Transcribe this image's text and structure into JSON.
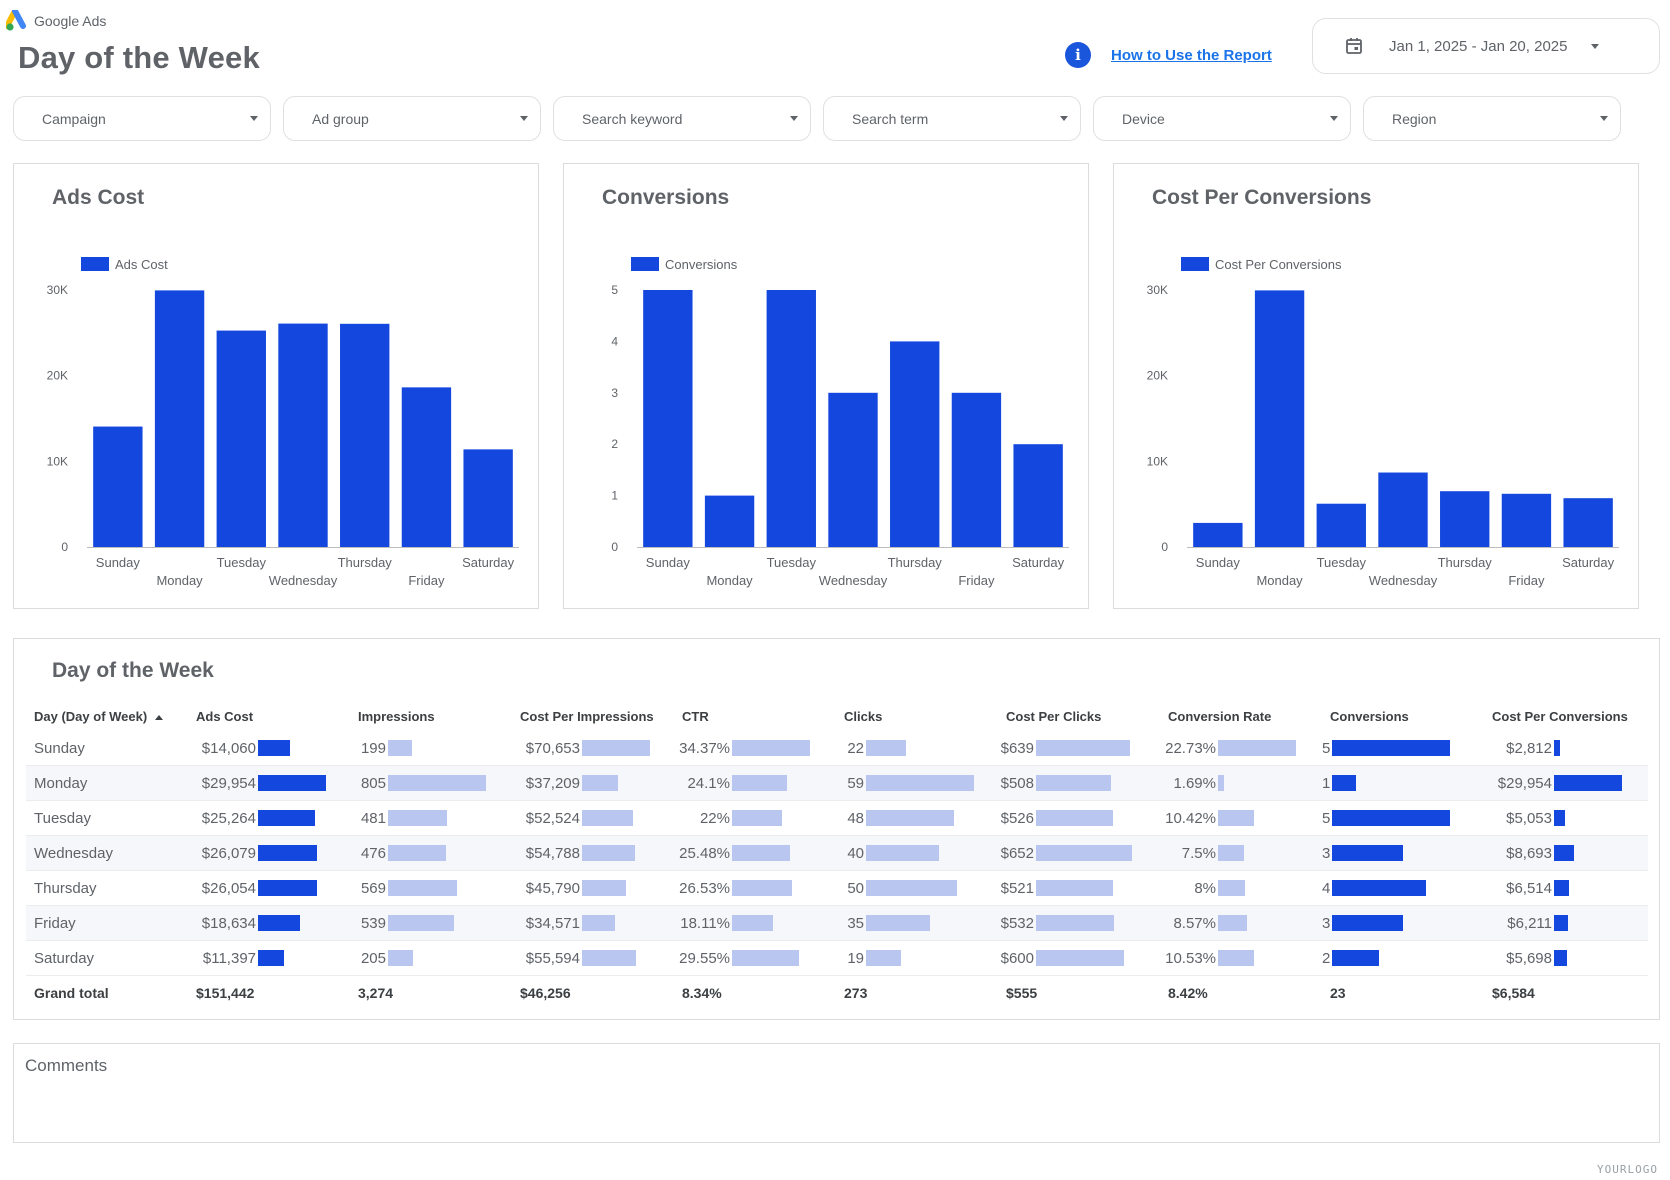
{
  "header": {
    "brand": "Google Ads",
    "title": "Day of the Week",
    "info_icon": "info-icon",
    "howto_link": "How to Use the Report",
    "date_range": "Jan 1, 2025 - Jan 20, 2025",
    "calendar_icon": "calendar-icon"
  },
  "filters": [
    {
      "key": "campaign",
      "label": "Campaign"
    },
    {
      "key": "ad-group",
      "label": "Ad group"
    },
    {
      "key": "search-keyword",
      "label": "Search keyword"
    },
    {
      "key": "search-term",
      "label": "Search term"
    },
    {
      "key": "device",
      "label": "Device"
    },
    {
      "key": "region",
      "label": "Region"
    }
  ],
  "colors": {
    "accent": "#1447de",
    "light_bar": "#b9c6ef",
    "text": "#5f6368"
  },
  "chart_data": [
    {
      "type": "bar",
      "title": "Ads Cost",
      "legend": [
        "Ads Cost"
      ],
      "legend_position": "top-left",
      "categories": [
        "Sunday",
        "Monday",
        "Tuesday",
        "Wednesday",
        "Thursday",
        "Friday",
        "Saturday"
      ],
      "series": [
        {
          "name": "Ads Cost",
          "values": [
            14060,
            29954,
            25264,
            26079,
            26054,
            18634,
            11397
          ]
        }
      ],
      "yticks": [
        "0",
        "10K",
        "20K",
        "30K"
      ],
      "ylim": [
        0,
        30000
      ],
      "grid": false
    },
    {
      "type": "bar",
      "title": "Conversions",
      "legend": [
        "Conversions"
      ],
      "legend_position": "top-left",
      "categories": [
        "Sunday",
        "Monday",
        "Tuesday",
        "Wednesday",
        "Thursday",
        "Friday",
        "Saturday"
      ],
      "series": [
        {
          "name": "Conversions",
          "values": [
            5,
            1,
            5,
            3,
            4,
            3,
            2
          ]
        }
      ],
      "yticks": [
        "0",
        "1",
        "2",
        "3",
        "4",
        "5"
      ],
      "ylim": [
        0,
        5
      ],
      "grid": false
    },
    {
      "type": "bar",
      "title": "Cost Per Conversions",
      "legend": [
        "Cost Per Conversions"
      ],
      "legend_position": "top-left",
      "categories": [
        "Sunday",
        "Monday",
        "Tuesday",
        "Wednesday",
        "Thursday",
        "Friday",
        "Saturday"
      ],
      "series": [
        {
          "name": "Cost Per Conversions",
          "values": [
            2812,
            29954,
            5053,
            8693,
            6514,
            6211,
            5698
          ]
        }
      ],
      "yticks": [
        "0",
        "10K",
        "20K",
        "30K"
      ],
      "ylim": [
        0,
        30000
      ],
      "grid": false
    }
  ],
  "table": {
    "title": "Day of the Week",
    "columns": [
      "Day (Day of Week)",
      "Ads Cost",
      "Impressions",
      "Cost Per Impressions",
      "CTR",
      "Clicks",
      "Cost Per Clicks",
      "Conversion Rate",
      "Conversions",
      "Cost Per Conversions"
    ],
    "bar_styles": [
      "dark",
      "light",
      "light",
      "light",
      "light",
      "light",
      "light",
      "dark",
      "dark"
    ],
    "rows": [
      {
        "day": "Sunday",
        "cells": [
          "$14,060",
          "199",
          "$70,653",
          "34.37%",
          "22",
          "$639",
          "22.73%",
          "5",
          "$2,812"
        ],
        "bars": [
          0.469,
          0.247,
          1.0,
          1.0,
          0.373,
          0.98,
          1.0,
          1.0,
          0.094
        ]
      },
      {
        "day": "Monday",
        "cells": [
          "$29,954",
          "805",
          "$37,209",
          "24.1%",
          "59",
          "$508",
          "1.69%",
          "1",
          "$29,954"
        ],
        "bars": [
          1.0,
          1.0,
          0.527,
          0.701,
          1.0,
          0.779,
          0.074,
          0.2,
          1.0
        ]
      },
      {
        "day": "Tuesday",
        "cells": [
          "$25,264",
          "481",
          "$52,524",
          "22%",
          "48",
          "$526",
          "10.42%",
          "5",
          "$5,053"
        ],
        "bars": [
          0.843,
          0.598,
          0.743,
          0.64,
          0.814,
          0.807,
          0.458,
          1.0,
          0.169
        ]
      },
      {
        "day": "Wednesday",
        "cells": [
          "$26,079",
          "476",
          "$54,788",
          "25.48%",
          "40",
          "$652",
          "7.5%",
          "3",
          "$8,693"
        ],
        "bars": [
          0.871,
          0.591,
          0.775,
          0.741,
          0.678,
          1.0,
          0.33,
          0.6,
          0.29
        ]
      },
      {
        "day": "Thursday",
        "cells": [
          "$26,054",
          "569",
          "$45,790",
          "26.53%",
          "50",
          "$521",
          "8%",
          "4",
          "$6,514"
        ],
        "bars": [
          0.87,
          0.707,
          0.648,
          0.772,
          0.847,
          0.799,
          0.352,
          0.8,
          0.217
        ]
      },
      {
        "day": "Friday",
        "cells": [
          "$18,634",
          "539",
          "$34,571",
          "18.11%",
          "35",
          "$532",
          "8.57%",
          "3",
          "$6,211"
        ],
        "bars": [
          0.622,
          0.67,
          0.489,
          0.527,
          0.593,
          0.816,
          0.377,
          0.6,
          0.207
        ]
      },
      {
        "day": "Saturday",
        "cells": [
          "$11,397",
          "205",
          "$55,594",
          "29.55%",
          "19",
          "$600",
          "10.53%",
          "2",
          "$5,698"
        ],
        "bars": [
          0.38,
          0.255,
          0.787,
          0.86,
          0.322,
          0.92,
          0.463,
          0.4,
          0.19
        ]
      }
    ],
    "totals": {
      "label": "Grand total",
      "cells": [
        "$151,442",
        "3,274",
        "$46,256",
        "8.34%",
        "273",
        "$555",
        "8.42%",
        "23",
        "$6,584"
      ]
    }
  },
  "comments": {
    "label": "Comments"
  },
  "footer": {
    "logo_text": "YOURLOGO"
  }
}
